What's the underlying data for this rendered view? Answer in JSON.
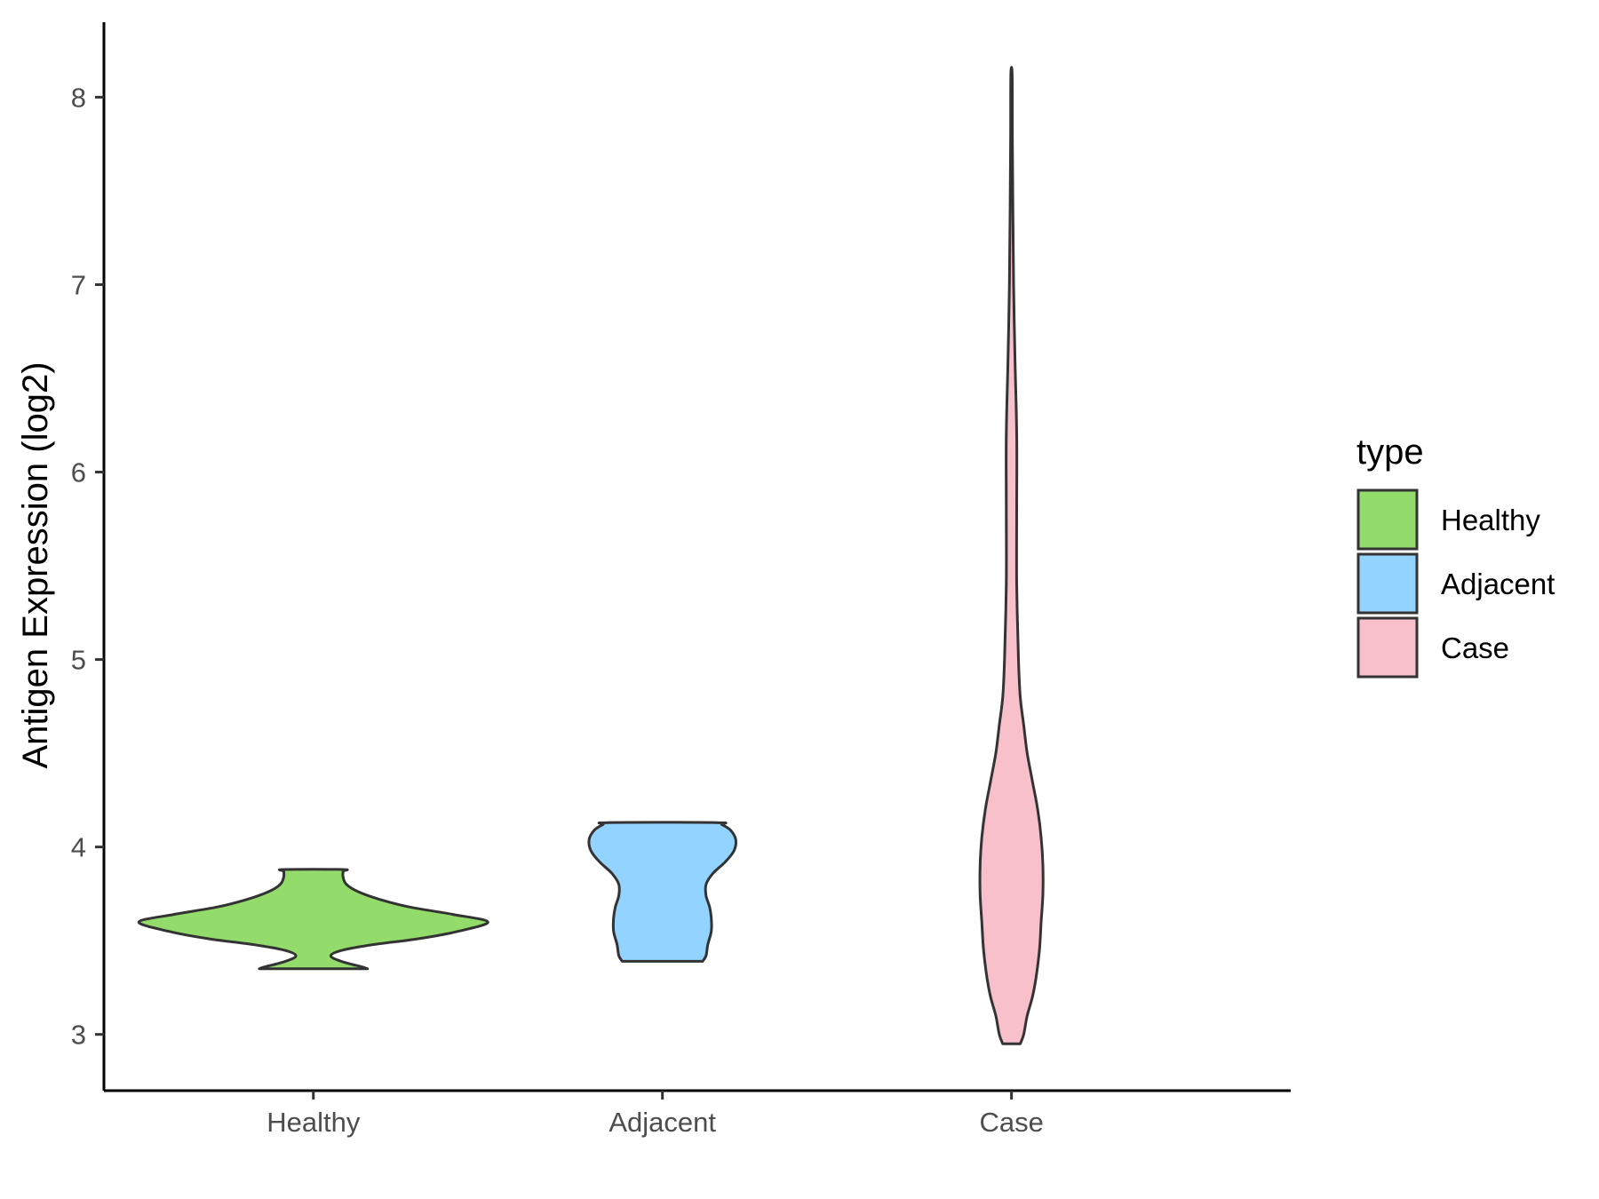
{
  "chart_data": {
    "type": "violin",
    "title": "",
    "xlabel": "",
    "ylabel": "Antigen Expression (log2)",
    "ylim": [
      2.7,
      8.4
    ],
    "yticks": [
      3,
      4,
      5,
      6,
      7,
      8
    ],
    "grid": false,
    "categories": [
      "Healthy",
      "Adjacent",
      "Case"
    ],
    "legend": {
      "title": "type",
      "position": "right",
      "entries": [
        {
          "label": "Healthy",
          "color": "#93DB6A"
        },
        {
          "label": "Adjacent",
          "color": "#92D3FF"
        },
        {
          "label": "Case",
          "color": "#F8C0CB"
        }
      ]
    },
    "series": [
      {
        "name": "Healthy",
        "color": "#93DB6A",
        "min": 3.35,
        "max": 3.88,
        "density": [
          [
            3.35,
            0.31
          ],
          [
            3.36,
            0.28
          ],
          [
            3.39,
            0.16
          ],
          [
            3.42,
            0.1
          ],
          [
            3.45,
            0.17
          ],
          [
            3.48,
            0.35
          ],
          [
            3.51,
            0.6
          ],
          [
            3.55,
            0.83
          ],
          [
            3.6,
            1.0
          ],
          [
            3.64,
            0.8
          ],
          [
            3.68,
            0.55
          ],
          [
            3.72,
            0.38
          ],
          [
            3.76,
            0.26
          ],
          [
            3.8,
            0.19
          ],
          [
            3.84,
            0.17
          ],
          [
            3.87,
            0.17
          ],
          [
            3.88,
            0.17
          ]
        ]
      },
      {
        "name": "Adjacent",
        "color": "#92D3FF",
        "min": 3.39,
        "max": 4.13,
        "density": [
          [
            3.39,
            0.23
          ],
          [
            3.42,
            0.25
          ],
          [
            3.48,
            0.26
          ],
          [
            3.55,
            0.28
          ],
          [
            3.62,
            0.28
          ],
          [
            3.68,
            0.27
          ],
          [
            3.74,
            0.25
          ],
          [
            3.8,
            0.25
          ],
          [
            3.86,
            0.29
          ],
          [
            3.92,
            0.36
          ],
          [
            3.98,
            0.41
          ],
          [
            4.04,
            0.42
          ],
          [
            4.09,
            0.39
          ],
          [
            4.12,
            0.34
          ],
          [
            4.13,
            0.31
          ]
        ]
      },
      {
        "name": "Case",
        "color": "#F8C0CB",
        "min": 2.95,
        "max": 8.12,
        "density": [
          [
            2.95,
            0.05
          ],
          [
            3.0,
            0.07
          ],
          [
            3.1,
            0.09
          ],
          [
            3.2,
            0.12
          ],
          [
            3.3,
            0.14
          ],
          [
            3.45,
            0.16
          ],
          [
            3.6,
            0.17
          ],
          [
            3.75,
            0.18
          ],
          [
            3.9,
            0.18
          ],
          [
            4.05,
            0.17
          ],
          [
            4.2,
            0.15
          ],
          [
            4.35,
            0.12
          ],
          [
            4.5,
            0.09
          ],
          [
            4.65,
            0.07
          ],
          [
            4.8,
            0.05
          ],
          [
            5.0,
            0.04
          ],
          [
            5.4,
            0.03
          ],
          [
            5.8,
            0.03
          ],
          [
            6.2,
            0.03
          ],
          [
            6.6,
            0.02
          ],
          [
            7.0,
            0.012
          ],
          [
            7.4,
            0.008
          ],
          [
            7.8,
            0.005
          ],
          [
            8.12,
            0.004
          ]
        ]
      }
    ]
  }
}
